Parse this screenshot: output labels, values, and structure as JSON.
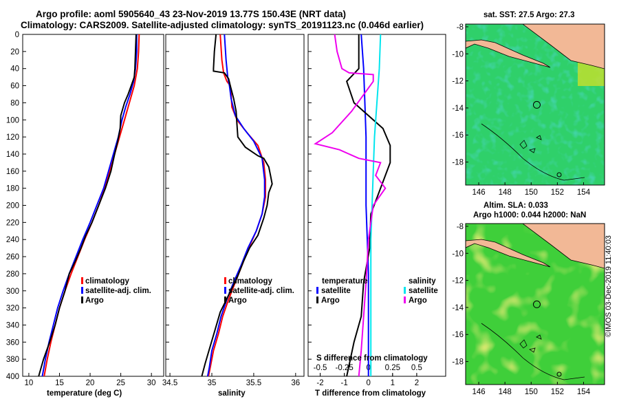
{
  "title_line1": "Argo profile: aoml 5905640_43 23-Nov-2019 13.77S 150.43E (NRT data)",
  "title_line2": "Climatology: CARS2009. Satellite-adjusted climatology: synTS_20191123.nc (0.046d earlier)",
  "credit": "©IMOS 03-Dec-2019 11:40:03",
  "colors": {
    "climatology": "#ff0000",
    "satellite": "#0000ff",
    "argo": "#000000",
    "cyan": "#00e5ee",
    "magenta": "#ee00ee",
    "land": "#f2b896"
  },
  "chart_data": [
    {
      "type": "line",
      "xlabel": "temperature (deg C)",
      "xlim": [
        9,
        32
      ],
      "ylim": [
        0,
        400
      ],
      "xticks": [
        10,
        15,
        20,
        25,
        30
      ],
      "yticks": [
        0,
        20,
        40,
        60,
        80,
        100,
        120,
        140,
        160,
        180,
        200,
        220,
        240,
        260,
        280,
        300,
        320,
        340,
        360,
        380,
        400
      ],
      "legend": [
        "climatology",
        "satellite-adj. clim.",
        "Argo"
      ],
      "series": [
        {
          "name": "climatology",
          "points": [
            [
              28,
              0
            ],
            [
              27.9,
              20
            ],
            [
              27.7,
              40
            ],
            [
              27.2,
              60
            ],
            [
              26.4,
              80
            ],
            [
              25.6,
              100
            ],
            [
              24.8,
              120
            ],
            [
              24,
              140
            ],
            [
              23.2,
              160
            ],
            [
              22.4,
              180
            ],
            [
              21.4,
              200
            ],
            [
              20.3,
              220
            ],
            [
              19.1,
              240
            ],
            [
              18,
              260
            ],
            [
              16.9,
              280
            ],
            [
              15.9,
              300
            ],
            [
              15,
              320
            ],
            [
              14.3,
              340
            ],
            [
              13.6,
              360
            ],
            [
              13,
              380
            ],
            [
              12.5,
              400
            ]
          ]
        },
        {
          "name": "satellite-adj. clim.",
          "points": [
            [
              27.6,
              0
            ],
            [
              27.6,
              20
            ],
            [
              27.4,
              40
            ],
            [
              27.1,
              55
            ],
            [
              26.5,
              70
            ],
            [
              25.8,
              85
            ],
            [
              25.2,
              100
            ],
            [
              24.6,
              120
            ],
            [
              23.8,
              140
            ],
            [
              23,
              160
            ],
            [
              22.2,
              180
            ],
            [
              21.1,
              200
            ],
            [
              20,
              220
            ],
            [
              18.8,
              240
            ],
            [
              17.7,
              260
            ],
            [
              16.6,
              280
            ],
            [
              15.6,
              300
            ],
            [
              14.7,
              320
            ],
            [
              14,
              340
            ],
            [
              13.3,
              360
            ],
            [
              12.7,
              380
            ],
            [
              12.2,
              400
            ]
          ]
        },
        {
          "name": "Argo",
          "points": [
            [
              27.5,
              0
            ],
            [
              27.4,
              20
            ],
            [
              27.3,
              40
            ],
            [
              27.2,
              50
            ],
            [
              26.7,
              60
            ],
            [
              26.2,
              70
            ],
            [
              25.6,
              80
            ],
            [
              25,
              95
            ],
            [
              24.9,
              110
            ],
            [
              24.5,
              125
            ],
            [
              24,
              140
            ],
            [
              23.4,
              160
            ],
            [
              22.5,
              180
            ],
            [
              21.4,
              200
            ],
            [
              20.3,
              220
            ],
            [
              19.3,
              235
            ],
            [
              18.5,
              250
            ],
            [
              17.6,
              265
            ],
            [
              16.6,
              280
            ],
            [
              15.9,
              300
            ],
            [
              15,
              320
            ],
            [
              14.3,
              340
            ],
            [
              13.4,
              360
            ],
            [
              12.4,
              380
            ],
            [
              11.6,
              400
            ]
          ]
        }
      ]
    },
    {
      "type": "line",
      "xlabel": "salinity",
      "xlim": [
        34.45,
        36.1
      ],
      "ylim": [
        0,
        400
      ],
      "xticks": [
        34.5,
        35,
        35.5,
        36
      ],
      "legend": [
        "climatology",
        "satellite-adj. clim.",
        "Argo"
      ],
      "series": [
        {
          "name": "climatology",
          "points": [
            [
              35.1,
              0
            ],
            [
              35.12,
              30
            ],
            [
              35.14,
              45
            ],
            [
              35.18,
              55
            ],
            [
              35.22,
              60
            ],
            [
              35.23,
              70
            ],
            [
              35.24,
              85
            ],
            [
              35.3,
              100
            ],
            [
              35.42,
              115
            ],
            [
              35.55,
              130
            ],
            [
              35.62,
              150
            ],
            [
              35.64,
              170
            ],
            [
              35.64,
              190
            ],
            [
              35.6,
              210
            ],
            [
              35.53,
              230
            ],
            [
              35.44,
              250
            ],
            [
              35.36,
              270
            ],
            [
              35.28,
              290
            ],
            [
              35.2,
              310
            ],
            [
              35.13,
              330
            ],
            [
              35.08,
              350
            ],
            [
              35.02,
              370
            ],
            [
              34.98,
              390
            ],
            [
              34.96,
              400
            ]
          ]
        },
        {
          "name": "satellite-adj. clim.",
          "points": [
            [
              35.15,
              0
            ],
            [
              35.17,
              30
            ],
            [
              35.19,
              50
            ],
            [
              35.21,
              60
            ],
            [
              35.23,
              75
            ],
            [
              35.28,
              95
            ],
            [
              35.38,
              110
            ],
            [
              35.5,
              125
            ],
            [
              35.6,
              145
            ],
            [
              35.63,
              170
            ],
            [
              35.63,
              190
            ],
            [
              35.6,
              210
            ],
            [
              35.53,
              230
            ],
            [
              35.43,
              250
            ],
            [
              35.35,
              270
            ],
            [
              35.26,
              290
            ],
            [
              35.18,
              310
            ],
            [
              35.11,
              330
            ],
            [
              35.06,
              350
            ],
            [
              35,
              370
            ],
            [
              34.97,
              390
            ],
            [
              34.95,
              400
            ]
          ]
        },
        {
          "name": "Argo",
          "points": [
            [
              35.05,
              0
            ],
            [
              35.03,
              20
            ],
            [
              35.02,
              40
            ],
            [
              35.02,
              43
            ],
            [
              35.15,
              45
            ],
            [
              35.2,
              52
            ],
            [
              35.22,
              60
            ],
            [
              35.26,
              75
            ],
            [
              35.29,
              90
            ],
            [
              35.3,
              105
            ],
            [
              35.31,
              120
            ],
            [
              35.4,
              132
            ],
            [
              35.55,
              142
            ],
            [
              35.62,
              145
            ],
            [
              35.68,
              155
            ],
            [
              35.7,
              165
            ],
            [
              35.72,
              175
            ],
            [
              35.68,
              185
            ],
            [
              35.66,
              200
            ],
            [
              35.62,
              215
            ],
            [
              35.55,
              235
            ],
            [
              35.45,
              250
            ],
            [
              35.38,
              265
            ],
            [
              35.3,
              285
            ],
            [
              35.2,
              305
            ],
            [
              35.1,
              325
            ],
            [
              35.04,
              345
            ],
            [
              34.98,
              365
            ],
            [
              34.92,
              385
            ],
            [
              34.88,
              400
            ]
          ]
        }
      ]
    },
    {
      "type": "line",
      "xlabel": "T difference from climatology",
      "xlabel2": "S difference from climatology",
      "xlim": [
        -2.5,
        3.2
      ],
      "ylim": [
        0,
        400
      ],
      "xticks": [
        -2,
        -1,
        0,
        1,
        2
      ],
      "xticks2": [
        "-0.5",
        "-0.25",
        "0",
        "0.25",
        "0.5"
      ],
      "xticks2_pos": [
        -2,
        -1,
        0,
        1,
        2
      ],
      "legend_left_title": "temperature",
      "legend_right_title": "salinity",
      "legend_left": [
        "satellite",
        "Argo"
      ],
      "legend_right": [
        "satellite",
        "Argo"
      ],
      "series": [
        {
          "name": "T satellite",
          "points": [
            [
              -0.3,
              0
            ],
            [
              -0.2,
              40
            ],
            [
              -0.15,
              80
            ],
            [
              -0.1,
              120
            ],
            [
              -0.1,
              160
            ],
            [
              -0.1,
              200
            ],
            [
              -0.05,
              240
            ],
            [
              0,
              280
            ],
            [
              0,
              320
            ],
            [
              0,
              360
            ],
            [
              0,
              400
            ]
          ]
        },
        {
          "name": "T Argo",
          "points": [
            [
              -0.4,
              0
            ],
            [
              -0.4,
              40
            ],
            [
              -0.9,
              55
            ],
            [
              -0.6,
              80
            ],
            [
              0.6,
              110
            ],
            [
              0.9,
              130
            ],
            [
              0.9,
              150
            ],
            [
              0.5,
              180
            ],
            [
              0.1,
              210
            ],
            [
              0.05,
              250
            ],
            [
              -0.2,
              290
            ],
            [
              -0.3,
              330
            ],
            [
              -0.6,
              360
            ],
            [
              -0.9,
              400
            ]
          ]
        },
        {
          "name": "S satellite",
          "points": [
            [
              0.5,
              0
            ],
            [
              0.45,
              40
            ],
            [
              0.35,
              80
            ],
            [
              0.25,
              120
            ],
            [
              0.2,
              160
            ],
            [
              0.15,
              200
            ],
            [
              0.1,
              240
            ],
            [
              0.1,
              280
            ],
            [
              0.1,
              320
            ],
            [
              0.1,
              360
            ],
            [
              0.1,
              400
            ]
          ]
        },
        {
          "name": "S Argo",
          "points": [
            [
              -1.4,
              0
            ],
            [
              -1.3,
              20
            ],
            [
              -1.1,
              40
            ],
            [
              -0.8,
              45
            ],
            [
              0.2,
              47
            ],
            [
              0.2,
              55
            ],
            [
              -0.7,
              90
            ],
            [
              -1.5,
              115
            ],
            [
              -2.2,
              128
            ],
            [
              -1.2,
              135
            ],
            [
              -0.4,
              145
            ],
            [
              0.5,
              150
            ],
            [
              0.3,
              165
            ],
            [
              0.7,
              180
            ],
            [
              0.2,
              200
            ],
            [
              0,
              240
            ],
            [
              -0.1,
              290
            ],
            [
              -0.2,
              330
            ],
            [
              -0.3,
              370
            ],
            [
              -0.4,
              400
            ]
          ]
        }
      ]
    },
    {
      "type": "heatmap",
      "title": "sat. SST: 27.5 Argo: 27.3",
      "xlim": [
        145,
        155.6
      ],
      "ylim": [
        -19.7,
        -7.8
      ],
      "xticks": [
        146,
        148,
        150,
        152,
        154
      ],
      "yticks": [
        -8,
        -10,
        -12,
        -14,
        -16,
        -18
      ],
      "argo_position": [
        150.43,
        -13.77
      ]
    },
    {
      "type": "heatmap",
      "title_line1": "Altim. SLA: 0.033",
      "title_line2": "Argo h1000: 0.044 h2000: NaN",
      "xlim": [
        145,
        155.6
      ],
      "ylim": [
        -19.7,
        -7.8
      ],
      "xticks": [
        146,
        148,
        150,
        152,
        154
      ],
      "yticks": [
        -8,
        -10,
        -12,
        -14,
        -16,
        -18
      ],
      "argo_position": [
        150.43,
        -13.77
      ]
    }
  ]
}
